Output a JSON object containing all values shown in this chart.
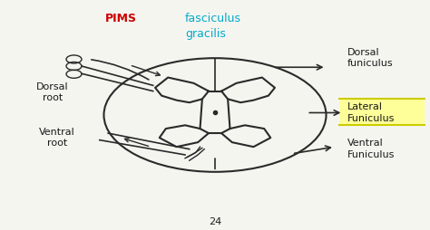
{
  "bg_color": "#f5f5f0",
  "title_pims": "PIMS",
  "title_pims_color": "#cc0000",
  "title_fasciculus": "fasciculus\ngracilis",
  "title_fasciculus_color": "#00aacc",
  "label_dorsal_root": "Dorsal\nroot",
  "label_ventral_root": "Ventral\nroot",
  "label_dorsal_funiculus": "Dorsal\nfuniculus",
  "label_lateral_funiculus": "Lateral\nFuniculus",
  "label_ventral_funiculus": "Ventral\nFuniculus",
  "page_number": "24",
  "yellow_box_color": "#ffff99",
  "spine_color": "#2a2a2a",
  "text_color": "#1a1a1a",
  "font_size": 8
}
